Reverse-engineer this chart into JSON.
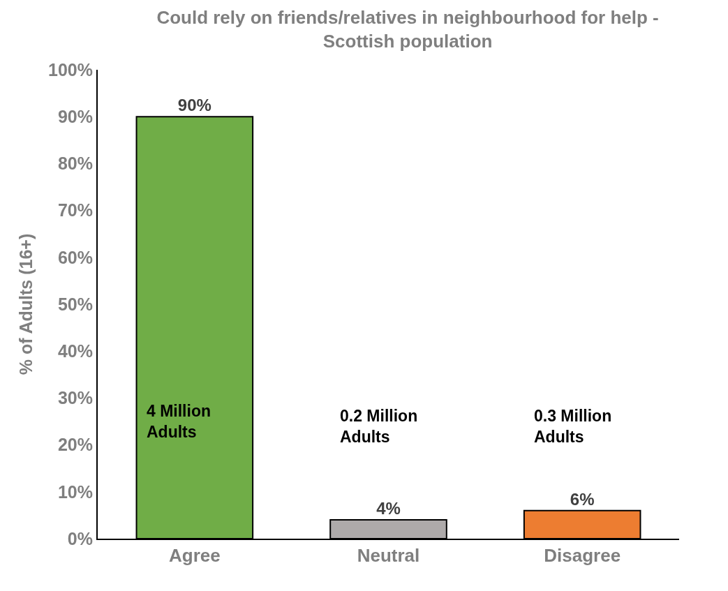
{
  "chart_data": {
    "type": "bar",
    "title": "Could rely on friends/relatives in neighbourhood for help -\nScottish population",
    "ylabel": "% of Adults (16+)",
    "categories": [
      "Agree",
      "Neutral",
      "Disagree"
    ],
    "values": [
      90,
      4,
      6
    ],
    "colors": [
      "#70ad47",
      "#aeaaaa",
      "#ed7d31"
    ],
    "value_labels": [
      "90%",
      "4%",
      "6%"
    ],
    "annotations": [
      "4 Million\nAdults",
      "0.2 Million\nAdults",
      "0.3 Million\nAdults"
    ],
    "ylim": [
      0,
      100
    ],
    "yticks": [
      {
        "value": 0,
        "label": "0%"
      },
      {
        "value": 10,
        "label": "10%"
      },
      {
        "value": 20,
        "label": "20%"
      },
      {
        "value": 30,
        "label": "30%"
      },
      {
        "value": 40,
        "label": "40%"
      },
      {
        "value": 50,
        "label": "50%"
      },
      {
        "value": 60,
        "label": "60%"
      },
      {
        "value": 70,
        "label": "70%"
      },
      {
        "value": 80,
        "label": "80%"
      },
      {
        "value": 90,
        "label": "90%"
      },
      {
        "value": 100,
        "label": "100%"
      }
    ]
  }
}
